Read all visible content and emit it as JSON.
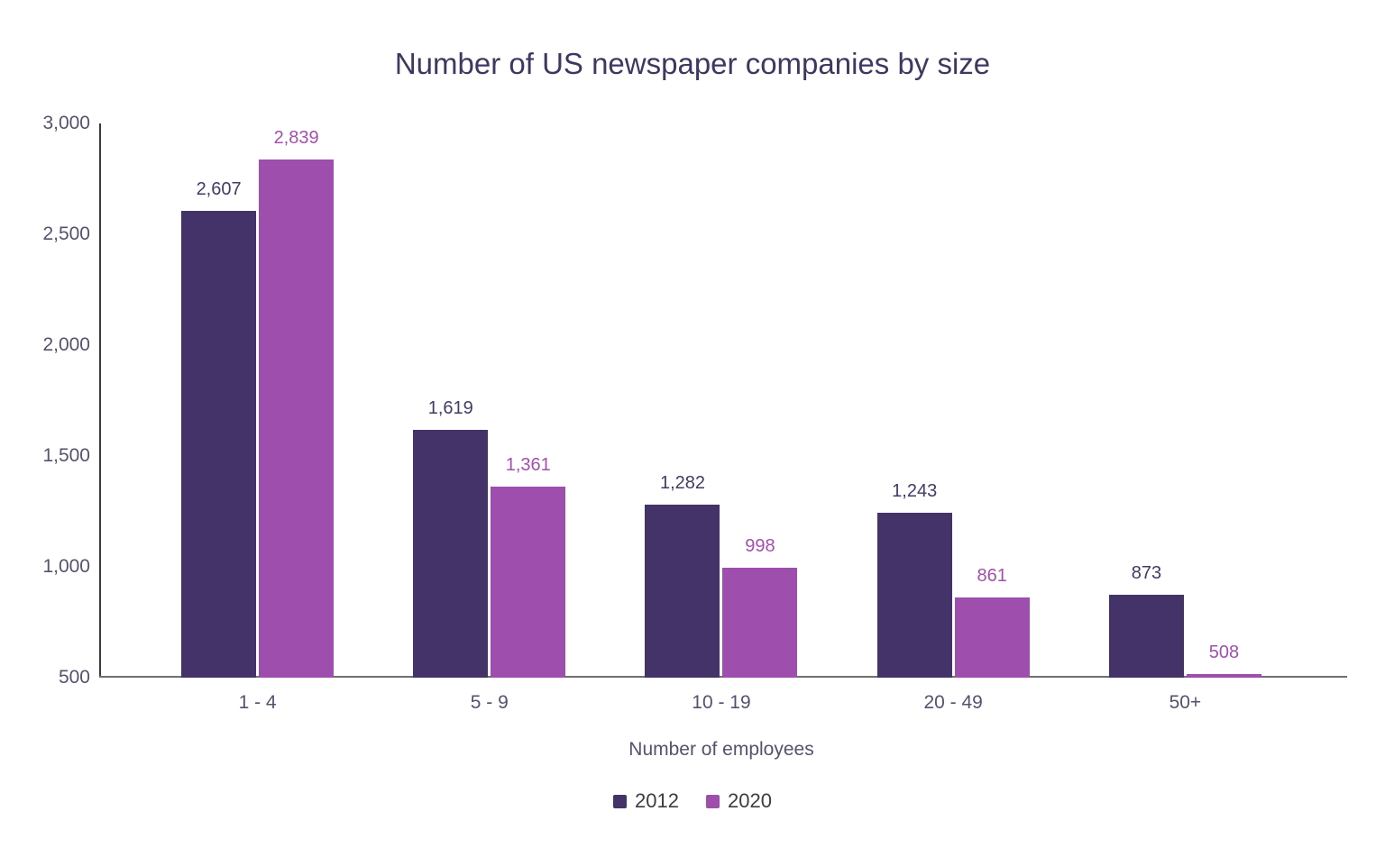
{
  "chart": {
    "title": "Number of US newspaper companies by size",
    "x_axis_title": "Number of employees"
  },
  "chart_data": {
    "type": "bar",
    "title": "Number of US newspaper companies by size",
    "xlabel": "Number of employees",
    "ylabel": "",
    "categories": [
      "1 - 4",
      "5 - 9",
      "10 - 19",
      "20 - 49",
      "50+"
    ],
    "series": [
      {
        "name": "2012",
        "values": [
          2607,
          1619,
          1282,
          1243,
          873
        ],
        "value_labels": [
          "2,607",
          "1,619",
          "1,282",
          "1,243",
          "873"
        ],
        "color": "#443368",
        "label_color": "#433a66"
      },
      {
        "name": "2020",
        "values": [
          2839,
          1361,
          998,
          861,
          508
        ],
        "value_labels": [
          "2,839",
          "1,361",
          "998",
          "861",
          "508"
        ],
        "color": "#9e4fae",
        "label_color": "#a44fae"
      }
    ],
    "ylim": [
      500,
      3000
    ],
    "yticks": [
      {
        "value": 3000,
        "label": "3,000"
      },
      {
        "value": 2500,
        "label": "2,500"
      },
      {
        "value": 2000,
        "label": "2,000"
      },
      {
        "value": 1500,
        "label": "1,500"
      },
      {
        "value": 1000,
        "label": "1,000"
      },
      {
        "value": 500,
        "label": "500"
      }
    ],
    "grid": false,
    "legend_position": "bottom",
    "legend": [
      "2012",
      "2020"
    ]
  },
  "colors": {
    "background": "#ffffff",
    "title_text": "#3c3861",
    "axis_text": "#55516e",
    "legend_text": "#3d3d3d",
    "y_axis_line": "#3b3b3b",
    "x_axis_line": "#6f6f6f",
    "series_2012": "#443368",
    "series_2020": "#9e4fae"
  }
}
